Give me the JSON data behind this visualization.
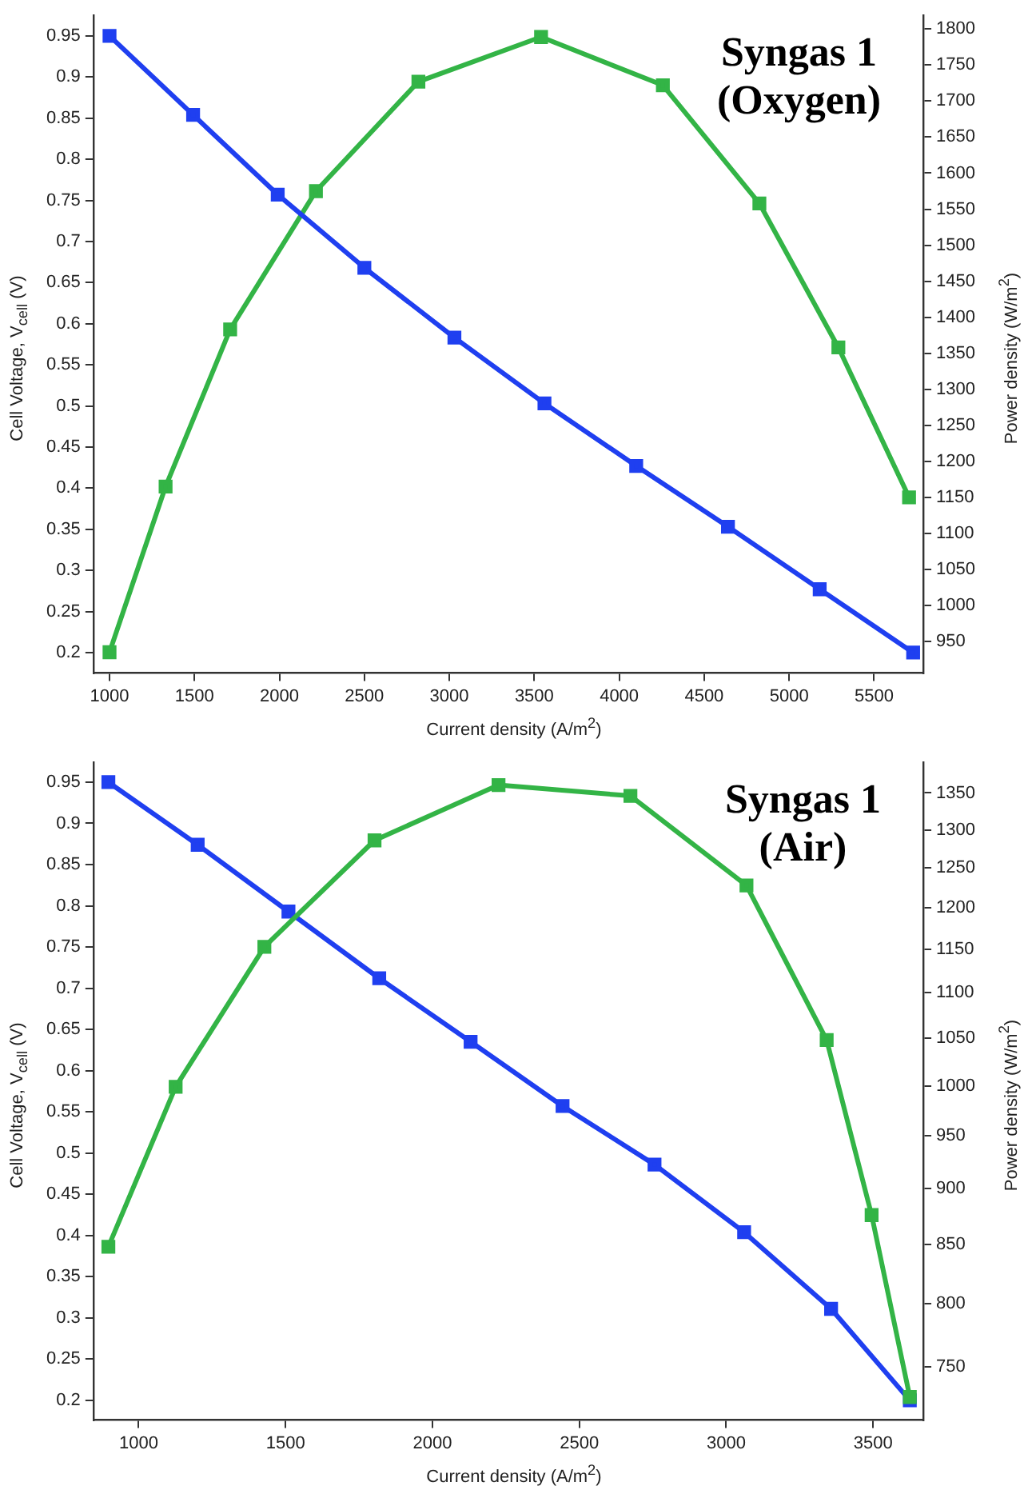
{
  "chart_data": [
    {
      "type": "line",
      "annotations": [
        "Syngas 1",
        "(Oxygen)"
      ],
      "xlabel": "Current density (A/m$^{2}$)",
      "ylabel": "Cell Voltage, V$_{cell}$ (V)",
      "y2label": "Power density (W/m$^{2}$)",
      "marker": "square",
      "line_style": "solid",
      "grid": false,
      "legend": false,
      "xlim": [
        905,
        5790
      ],
      "xticks": [
        1000,
        1500,
        2000,
        2500,
        3000,
        3500,
        4000,
        4500,
        5000,
        5500
      ],
      "ylim": [
        0.175,
        0.975
      ],
      "yticks": [
        0.2,
        0.25,
        0.3,
        0.35,
        0.4,
        0.45,
        0.5,
        0.55,
        0.6,
        0.65,
        0.7,
        0.75,
        0.8,
        0.85,
        0.9,
        0.95
      ],
      "y2lim": [
        906,
        1819
      ],
      "y2ticks": [
        950,
        1000,
        1050,
        1100,
        1150,
        1200,
        1250,
        1300,
        1350,
        1400,
        1450,
        1500,
        1550,
        1600,
        1650,
        1700,
        1750,
        1800
      ],
      "series": [
        {
          "color": "#1f3ff0",
          "x": [
            1000,
            1492,
            1990,
            2500,
            3030,
            3560,
            4100,
            4640,
            5180,
            5730
          ],
          "values": [
            0.95,
            0.854,
            0.757,
            0.668,
            0.583,
            0.503,
            0.427,
            0.353,
            0.277,
            0.2
          ]
        },
        {
          "color": "#33b446",
          "axis": "y2",
          "x": [
            1000,
            1330,
            1710,
            2215,
            2818,
            3540,
            4257,
            4825,
            5290,
            5706
          ],
          "values": [
            935,
            1165,
            1383,
            1575,
            1727,
            1789,
            1722,
            1558,
            1358,
            1150
          ]
        }
      ]
    },
    {
      "type": "line",
      "annotations": [
        "Syngas 1",
        "(Air)"
      ],
      "xlabel": "Current density (A/m$^{2}$)",
      "ylabel": "Cell Voltage, V$_{cell}$ (V)",
      "y2label": "Power density (W/m$^{2}$)",
      "marker": "square",
      "line_style": "solid",
      "grid": false,
      "legend": false,
      "log": "y2",
      "xlim": [
        846,
        3671
      ],
      "xticks": [
        1000,
        1500,
        2000,
        2500,
        3000,
        3500
      ],
      "ylim": [
        0.176,
        0.974
      ],
      "yticks": [
        0.2,
        0.25,
        0.3,
        0.35,
        0.4,
        0.45,
        0.5,
        0.55,
        0.6,
        0.65,
        0.7,
        0.75,
        0.8,
        0.85,
        0.9,
        0.95
      ],
      "y2lim": [
        710,
        1393
      ],
      "y2ticks": [
        750,
        800,
        850,
        900,
        950,
        1000,
        1050,
        1100,
        1150,
        1200,
        1250,
        1300,
        1350
      ],
      "series": [
        {
          "color": "#33b446",
          "axis": "y2",
          "x": [
            897,
            1126,
            1428,
            1803,
            2225,
            2674,
            3069,
            3342,
            3495,
            3625
          ],
          "values": [
            848,
            999,
            1153,
            1286,
            1361,
            1346,
            1228,
            1048,
            876,
            727
          ]
        },
        {
          "color": "#1f3ff0",
          "x": [
            897,
            1201,
            1510,
            1819,
            2130,
            2443,
            2756,
            3061,
            3357,
            3625
          ],
          "values": [
            0.95,
            0.874,
            0.793,
            0.712,
            0.635,
            0.557,
            0.486,
            0.404,
            0.311,
            0.2
          ]
        }
      ]
    }
  ]
}
